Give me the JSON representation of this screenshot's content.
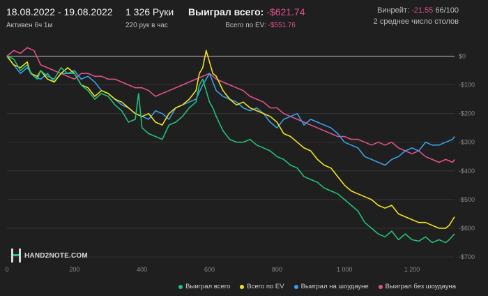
{
  "header": {
    "date_range": "18.08.2022 - 19.08.2022",
    "active": "Активен 6ч 1м",
    "hands": "1 326 Руки",
    "hands_per_hour": "220 рук в час",
    "won_label": "Выиграл всего:",
    "won_value": "-$621.74",
    "ev_label": "Всего по EV:",
    "ev_value": "-$551.76",
    "winrate_label": "Винрейт:",
    "winrate_value": "-21.55",
    "winrate_unit": "66/100",
    "avg_tables": "2 среднее число столов"
  },
  "logo": {
    "text": "HAND2NOTE.COM"
  },
  "colors": {
    "bg": "#1f1f1f",
    "won": "#22c07a",
    "ev": "#f2e41e",
    "sd": "#3aa0e8",
    "nsd": "#e0518d",
    "zero": "#9b9b9b"
  },
  "chart_data": {
    "type": "line",
    "xlim": [
      0,
      1326
    ],
    "ylim": [
      -700,
      50
    ],
    "x_ticks": [
      0,
      200,
      400,
      600,
      800,
      1000,
      1200
    ],
    "x_tick_labels": [
      "0",
      "200",
      "400",
      "600",
      "800",
      "1 000",
      "1 200"
    ],
    "y_ticks": [
      0,
      -100,
      -200,
      -300,
      -400,
      -500,
      -600,
      -700
    ],
    "y_tick_labels": [
      "$0",
      "-$100",
      "-$200",
      "-$300",
      "-$400",
      "-$500",
      "-$600",
      "-$700"
    ],
    "legend_position": "bottom-right",
    "series": [
      {
        "name": "Выиграл всего",
        "color": "#22c07a",
        "x": [
          0,
          20,
          40,
          60,
          70,
          90,
          100,
          120,
          140,
          160,
          180,
          200,
          220,
          240,
          260,
          280,
          300,
          320,
          340,
          360,
          380,
          390,
          400,
          420,
          440,
          460,
          480,
          500,
          520,
          540,
          560,
          570,
          580,
          590,
          600,
          610,
          620,
          640,
          660,
          680,
          700,
          720,
          740,
          760,
          780,
          800,
          820,
          840,
          860,
          880,
          900,
          920,
          940,
          960,
          980,
          1000,
          1020,
          1040,
          1060,
          1080,
          1100,
          1120,
          1140,
          1160,
          1180,
          1200,
          1220,
          1240,
          1260,
          1280,
          1300,
          1310,
          1326
        ],
        "y": [
          0,
          -10,
          -50,
          -30,
          -60,
          -80,
          -50,
          -70,
          -80,
          -40,
          -60,
          -60,
          -100,
          -120,
          -150,
          -130,
          -140,
          -170,
          -190,
          -230,
          -220,
          -130,
          -250,
          -270,
          -280,
          -290,
          -240,
          -230,
          -210,
          -180,
          -160,
          -100,
          -80,
          -120,
          -160,
          -180,
          -210,
          -260,
          -290,
          -300,
          -300,
          -290,
          -310,
          -320,
          -330,
          -350,
          -360,
          -380,
          -390,
          -420,
          -430,
          -440,
          -460,
          -470,
          -480,
          -500,
          -520,
          -540,
          -580,
          -600,
          -620,
          -630,
          -610,
          -640,
          -620,
          -640,
          -645,
          -630,
          -650,
          -640,
          -650,
          -640,
          -620
        ]
      },
      {
        "name": "Всего по EV",
        "color": "#f2e41e",
        "x": [
          0,
          20,
          40,
          60,
          70,
          90,
          100,
          120,
          140,
          160,
          180,
          200,
          220,
          240,
          260,
          280,
          300,
          320,
          340,
          360,
          380,
          400,
          420,
          440,
          460,
          480,
          500,
          520,
          540,
          560,
          570,
          580,
          590,
          600,
          610,
          620,
          640,
          660,
          680,
          700,
          720,
          740,
          760,
          780,
          800,
          820,
          840,
          860,
          880,
          900,
          920,
          940,
          960,
          980,
          1000,
          1020,
          1040,
          1060,
          1080,
          1100,
          1120,
          1140,
          1160,
          1180,
          1200,
          1220,
          1240,
          1260,
          1280,
          1300,
          1310,
          1326
        ],
        "y": [
          0,
          -30,
          -40,
          -20,
          -60,
          -70,
          -50,
          -80,
          -90,
          -60,
          -40,
          -60,
          -100,
          -110,
          -140,
          -120,
          -130,
          -150,
          -160,
          -180,
          -200,
          -210,
          -200,
          -230,
          -240,
          -200,
          -180,
          -170,
          -150,
          -120,
          -60,
          -40,
          20,
          -20,
          -60,
          -70,
          -120,
          -150,
          -170,
          -160,
          -180,
          -190,
          -200,
          -210,
          -230,
          -270,
          -280,
          -300,
          -320,
          -330,
          -360,
          -380,
          -390,
          -420,
          -450,
          -470,
          -480,
          -490,
          -500,
          -520,
          -530,
          -520,
          -550,
          -560,
          -570,
          -580,
          -580,
          -590,
          -600,
          -600,
          -590,
          -560
        ]
      },
      {
        "name": "Выиграл на шоудауне",
        "color": "#3aa0e8",
        "x": [
          0,
          20,
          40,
          60,
          80,
          100,
          120,
          140,
          160,
          180,
          200,
          220,
          240,
          260,
          280,
          300,
          320,
          340,
          360,
          380,
          400,
          420,
          440,
          460,
          480,
          500,
          520,
          540,
          560,
          580,
          600,
          620,
          640,
          660,
          680,
          700,
          720,
          740,
          760,
          780,
          800,
          820,
          840,
          860,
          880,
          900,
          920,
          940,
          960,
          980,
          1000,
          1020,
          1040,
          1060,
          1080,
          1100,
          1120,
          1140,
          1160,
          1180,
          1200,
          1220,
          1240,
          1260,
          1280,
          1300,
          1320,
          1326
        ],
        "y": [
          0,
          -30,
          -60,
          -40,
          -70,
          -80,
          -60,
          -90,
          -60,
          -60,
          -50,
          -80,
          -70,
          -90,
          -120,
          -130,
          -150,
          -170,
          -180,
          -200,
          -210,
          -220,
          -190,
          -200,
          -220,
          -180,
          -170,
          -160,
          -150,
          -100,
          -60,
          -120,
          -140,
          -150,
          -160,
          -180,
          -190,
          -180,
          -200,
          -230,
          -250,
          -220,
          -210,
          -200,
          -240,
          -220,
          -230,
          -240,
          -250,
          -270,
          -300,
          -310,
          -320,
          -350,
          -360,
          -370,
          -380,
          -360,
          -350,
          -330,
          -320,
          -330,
          -300,
          -310,
          -310,
          -300,
          -290,
          -280
        ]
      },
      {
        "name": "Выиграл без шоудауна",
        "color": "#e0518d",
        "x": [
          0,
          20,
          40,
          60,
          80,
          100,
          120,
          140,
          160,
          180,
          200,
          220,
          240,
          260,
          280,
          300,
          320,
          340,
          360,
          380,
          400,
          420,
          440,
          460,
          480,
          500,
          520,
          540,
          560,
          580,
          600,
          620,
          640,
          660,
          680,
          700,
          720,
          740,
          760,
          780,
          800,
          820,
          840,
          860,
          880,
          900,
          920,
          940,
          960,
          980,
          1000,
          1020,
          1040,
          1060,
          1080,
          1100,
          1120,
          1140,
          1160,
          1180,
          1200,
          1220,
          1240,
          1260,
          1280,
          1300,
          1320,
          1326
        ],
        "y": [
          0,
          20,
          10,
          30,
          20,
          -30,
          -40,
          -50,
          -60,
          -70,
          -80,
          -60,
          -60,
          -70,
          -70,
          -80,
          -80,
          -90,
          -100,
          -110,
          -110,
          -120,
          -140,
          -130,
          -120,
          -110,
          -100,
          -90,
          -80,
          -70,
          -60,
          -80,
          -90,
          -100,
          -110,
          -120,
          -140,
          -150,
          -160,
          -180,
          -180,
          -200,
          -210,
          -220,
          -230,
          -240,
          -250,
          -260,
          -270,
          -280,
          -280,
          -290,
          -290,
          -300,
          -310,
          -300,
          -310,
          -300,
          -320,
          -330,
          -340,
          -330,
          -350,
          -360,
          -370,
          -360,
          -370,
          -360
        ]
      }
    ]
  }
}
